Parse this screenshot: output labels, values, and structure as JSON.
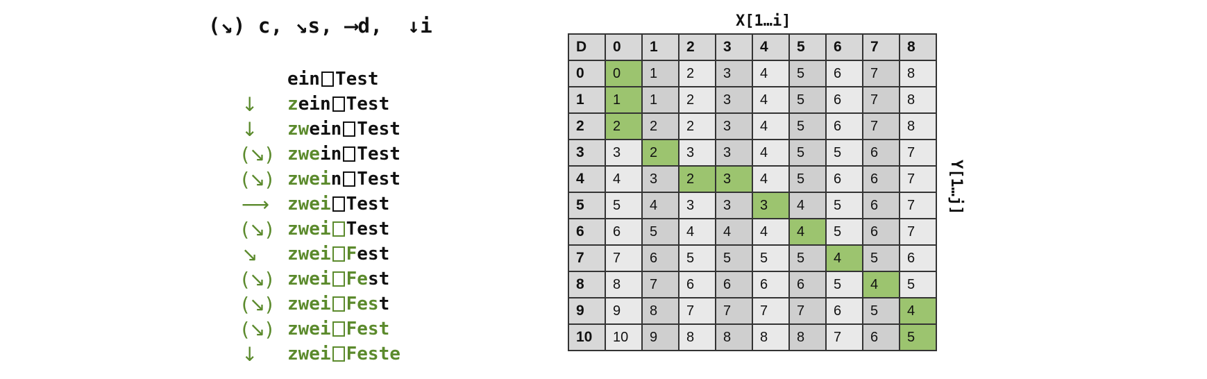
{
  "legend": "(↘) c, ↘s, ⟶d,  ↓i",
  "steps": [
    {
      "op": "",
      "segs": [
        [
          "ein",
          "k"
        ],
        [
          "□",
          "k"
        ],
        [
          "Test",
          "k"
        ]
      ]
    },
    {
      "op": "↓",
      "segs": [
        [
          "z",
          "g"
        ],
        [
          "ein",
          "k"
        ],
        [
          "□",
          "k"
        ],
        [
          "Test",
          "k"
        ]
      ]
    },
    {
      "op": "↓",
      "segs": [
        [
          "zw",
          "g"
        ],
        [
          "ein",
          "k"
        ],
        [
          "□",
          "k"
        ],
        [
          "Test",
          "k"
        ]
      ]
    },
    {
      "op": "(↘)",
      "segs": [
        [
          "zwe",
          "g"
        ],
        [
          "in",
          "k"
        ],
        [
          "□",
          "k"
        ],
        [
          "Test",
          "k"
        ]
      ]
    },
    {
      "op": "(↘)",
      "segs": [
        [
          "zwei",
          "g"
        ],
        [
          "n",
          "k"
        ],
        [
          "□",
          "k"
        ],
        [
          "Test",
          "k"
        ]
      ]
    },
    {
      "op": "⟶",
      "segs": [
        [
          "zwei",
          "g"
        ],
        [
          "□",
          "k"
        ],
        [
          "Test",
          "k"
        ]
      ]
    },
    {
      "op": "(↘)",
      "segs": [
        [
          "zwei",
          "g"
        ],
        [
          "□",
          "g"
        ],
        [
          "Test",
          "k"
        ]
      ]
    },
    {
      "op": "↘",
      "segs": [
        [
          "zwei",
          "g"
        ],
        [
          "□",
          "g"
        ],
        [
          "F",
          "g"
        ],
        [
          "est",
          "k"
        ]
      ]
    },
    {
      "op": "(↘)",
      "segs": [
        [
          "zwei",
          "g"
        ],
        [
          "□",
          "g"
        ],
        [
          "Fe",
          "g"
        ],
        [
          "st",
          "k"
        ]
      ]
    },
    {
      "op": "(↘)",
      "segs": [
        [
          "zwei",
          "g"
        ],
        [
          "□",
          "g"
        ],
        [
          "Fes",
          "g"
        ],
        [
          "t",
          "k"
        ]
      ]
    },
    {
      "op": "(↘)",
      "segs": [
        [
          "zwei",
          "g"
        ],
        [
          "□",
          "g"
        ],
        [
          "Fest",
          "g"
        ]
      ]
    },
    {
      "op": "↓",
      "segs": [
        [
          "zwei",
          "g"
        ],
        [
          "□",
          "g"
        ],
        [
          "Feste",
          "g"
        ]
      ]
    }
  ],
  "table": {
    "x_label": "X[1…i]",
    "y_label": "Y[1…j]",
    "corner": "D",
    "col_headers": [
      "0",
      "1",
      "2",
      "3",
      "4",
      "5",
      "6",
      "7",
      "8"
    ],
    "row_headers": [
      "0",
      "1",
      "2",
      "3",
      "4",
      "5",
      "6",
      "7",
      "8",
      "9",
      "10"
    ],
    "rows": [
      [
        "0",
        "1",
        "2",
        "3",
        "4",
        "5",
        "6",
        "7",
        "8"
      ],
      [
        "1",
        "1",
        "2",
        "3",
        "4",
        "5",
        "6",
        "7",
        "8"
      ],
      [
        "2",
        "2",
        "2",
        "3",
        "4",
        "5",
        "6",
        "7",
        "8"
      ],
      [
        "3",
        "2",
        "3",
        "3",
        "4",
        "5",
        "5",
        "6",
        "7"
      ],
      [
        "4",
        "3",
        "2",
        "3",
        "4",
        "5",
        "6",
        "6",
        "7"
      ],
      [
        "5",
        "4",
        "3",
        "3",
        "3",
        "4",
        "5",
        "6",
        "7"
      ],
      [
        "6",
        "5",
        "4",
        "4",
        "4",
        "4",
        "5",
        "6",
        "7"
      ],
      [
        "7",
        "6",
        "5",
        "5",
        "5",
        "5",
        "4",
        "5",
        "6"
      ],
      [
        "8",
        "7",
        "6",
        "6",
        "6",
        "6",
        "5",
        "4",
        "5"
      ],
      [
        "9",
        "8",
        "7",
        "7",
        "7",
        "7",
        "6",
        "5",
        "4"
      ],
      [
        "10",
        "9",
        "8",
        "8",
        "8",
        "8",
        "7",
        "6",
        "5"
      ]
    ],
    "path_cells": [
      [
        0,
        0
      ],
      [
        1,
        0
      ],
      [
        2,
        0
      ],
      [
        3,
        1
      ],
      [
        4,
        2
      ],
      [
        4,
        3
      ],
      [
        5,
        4
      ],
      [
        6,
        5
      ],
      [
        7,
        6
      ],
      [
        8,
        7
      ],
      [
        9,
        8
      ],
      [
        10,
        8
      ]
    ],
    "path_color": "#9cc46f",
    "highlight_color": "#5b8a2c"
  }
}
